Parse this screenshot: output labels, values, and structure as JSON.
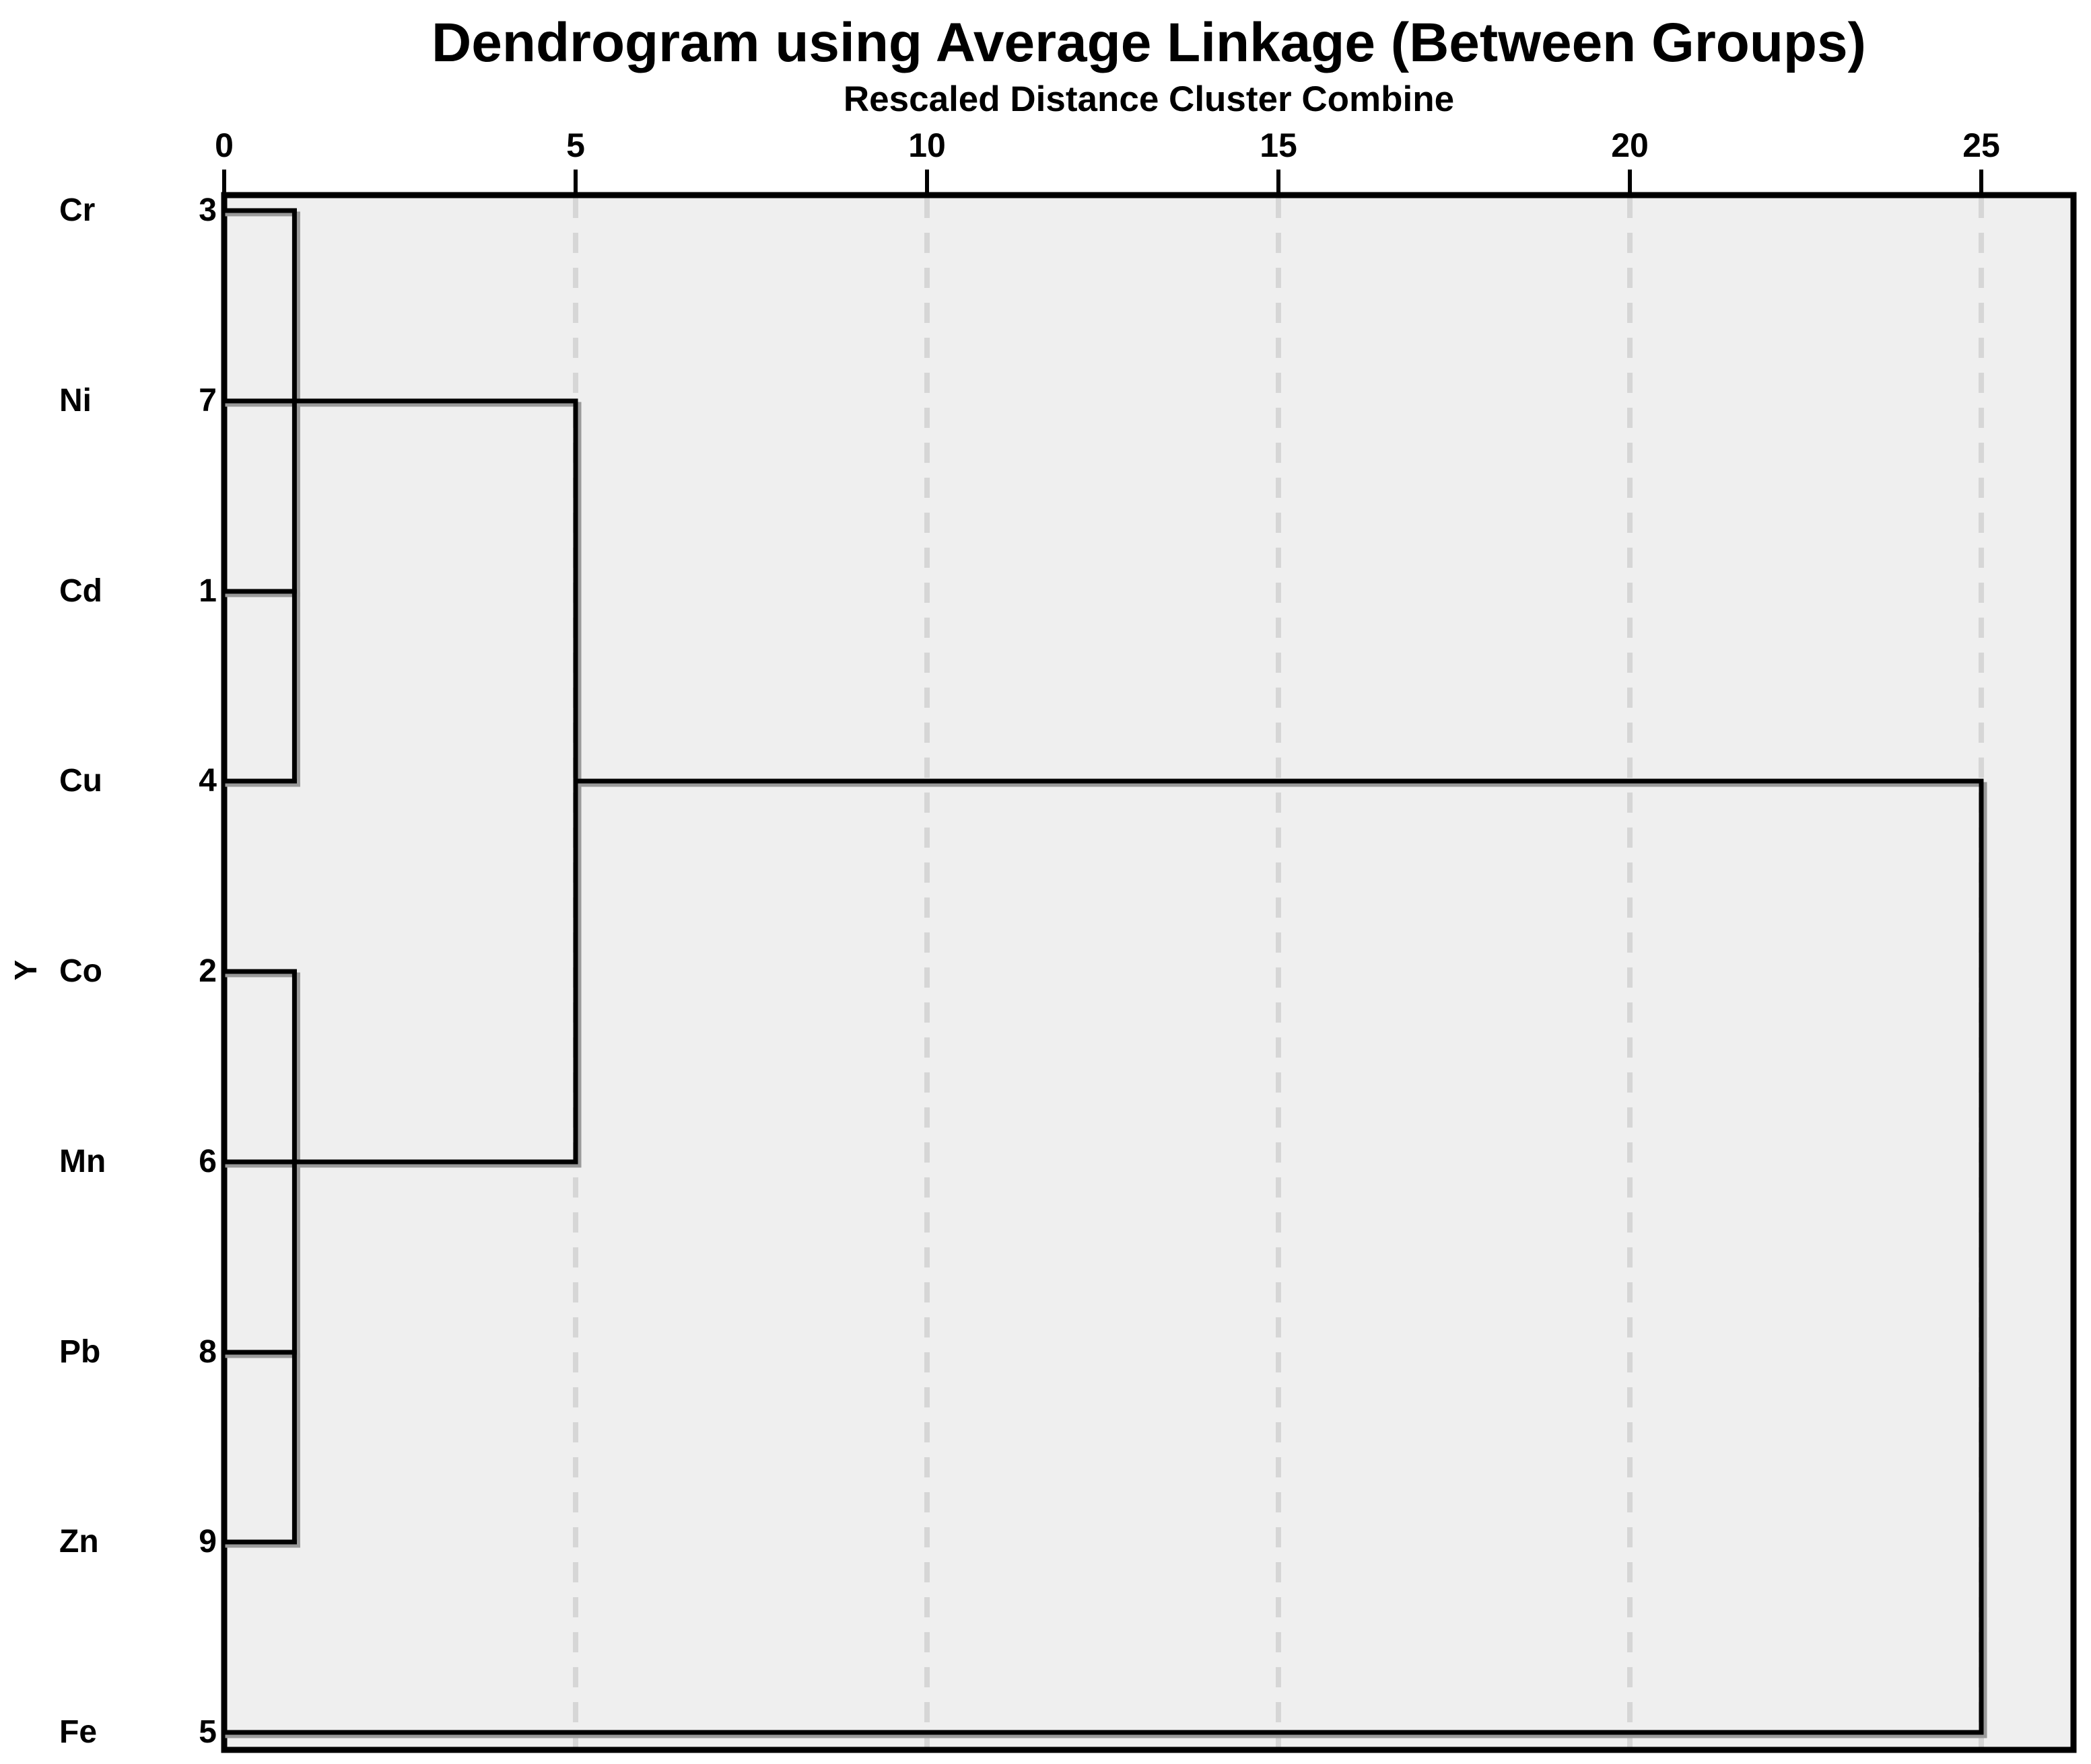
{
  "title": "Dendrogram using Average Linkage (Between Groups)",
  "subtitle": "Rescaled Distance Cluster Combine",
  "y_axis_label": "Y",
  "chart_data": {
    "type": "dendrogram",
    "orientation": "horizontal",
    "linkage_method": "Average Linkage (Between Groups)",
    "distance_axis_title": "Rescaled Distance Cluster Combine",
    "x_axis": {
      "min": 0,
      "max": 25,
      "ticks": [
        0,
        5,
        10,
        15,
        20,
        25
      ],
      "tick_labels": [
        "0",
        "5",
        "10",
        "15",
        "20",
        "25"
      ],
      "dashed_gridlines_at": [
        5,
        10,
        15,
        20,
        25
      ]
    },
    "leaves_top_to_bottom": [
      {
        "label": "Cr",
        "case_number": "3",
        "leaf_line_to_distance": 1
      },
      {
        "label": "Ni",
        "case_number": "7",
        "leaf_line_to_distance": 5
      },
      {
        "label": "Cd",
        "case_number": "1",
        "leaf_line_to_distance": 1
      },
      {
        "label": "Cu",
        "case_number": "4",
        "leaf_line_to_distance": 1
      },
      {
        "label": "Co",
        "case_number": "2",
        "leaf_line_to_distance": 1
      },
      {
        "label": "Mn",
        "case_number": "6",
        "leaf_line_to_distance": 5
      },
      {
        "label": "Pb",
        "case_number": "8",
        "leaf_line_to_distance": 1
      },
      {
        "label": "Zn",
        "case_number": "9",
        "leaf_line_to_distance": 1
      },
      {
        "label": "Fe",
        "case_number": "5",
        "leaf_line_to_distance": 25
      }
    ],
    "vertical_links": [
      {
        "distance": 1,
        "from_row": "Cr",
        "to_row": "Cu"
      },
      {
        "distance": 1,
        "from_row": "Co",
        "to_row": "Zn"
      },
      {
        "distance": 5,
        "from_row": "Ni",
        "to_row": "Mn"
      },
      {
        "distance": 25,
        "from_row": "Cu",
        "to_row": "Fe"
      }
    ],
    "extra_horizontal_links": [
      {
        "row": "Cu",
        "from_distance": 5,
        "to_distance": 25
      }
    ],
    "merges": [
      {
        "clusters": [
          "Cr",
          "Ni"
        ],
        "rescaled_distance": 1
      },
      {
        "clusters": [
          "Cd",
          "Cu"
        ],
        "rescaled_distance": 1
      },
      {
        "clusters": [
          "Cr,Ni",
          "Cd,Cu"
        ],
        "rescaled_distance": 1
      },
      {
        "clusters": [
          "Co",
          "Mn"
        ],
        "rescaled_distance": 1
      },
      {
        "clusters": [
          "Pb",
          "Zn"
        ],
        "rescaled_distance": 1
      },
      {
        "clusters": [
          "Co,Mn",
          "Pb,Zn"
        ],
        "rescaled_distance": 1
      },
      {
        "clusters": [
          "Cr,Ni,Cd,Cu",
          "Co,Mn,Pb,Zn"
        ],
        "rescaled_distance": 5
      },
      {
        "clusters": [
          "Cr,Ni,Cd,Cu,Co,Mn,Pb,Zn",
          "Fe"
        ],
        "rescaled_distance": 25
      }
    ],
    "colors": {
      "line": "#000000",
      "line_shadow": "#9a9a9a",
      "plot_background": "#efefef",
      "gridline": "#d6d6d6",
      "page_background": "#ffffff",
      "text": "#000000"
    }
  }
}
